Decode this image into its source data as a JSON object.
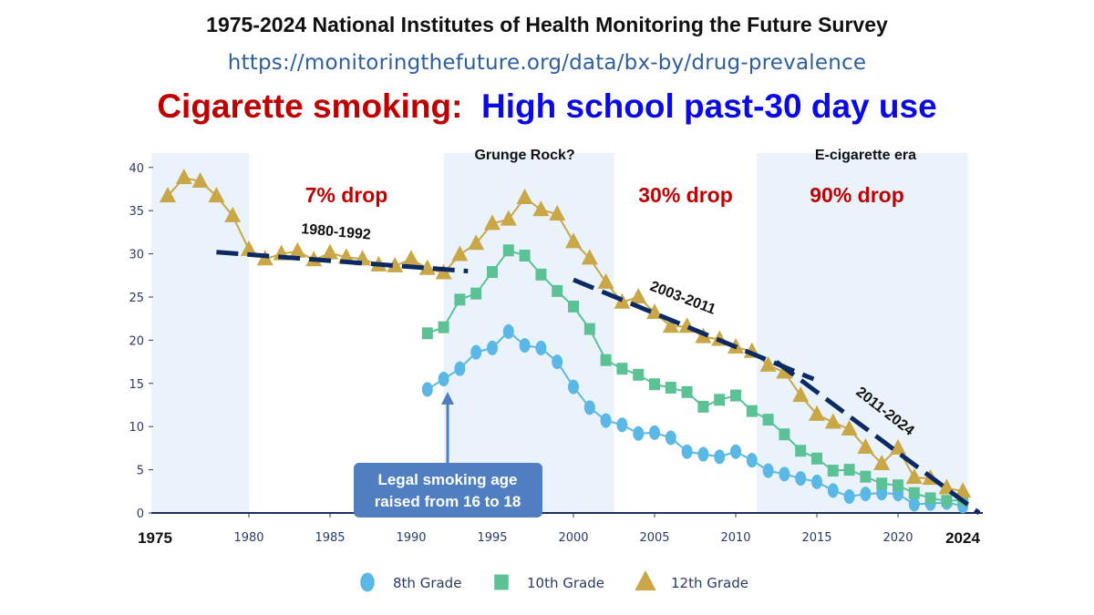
{
  "header": {
    "survey_title": "1975-2024 National Institutes of Health Monitoring the Future Survey",
    "source_url": "https://monitoringthefuture.org/data/bx-by/drug-prevalence",
    "title_part1": "Cigarette smoking:",
    "title_part2": "High school past-30 day use"
  },
  "colors": {
    "grade8": "#5bb8e4",
    "grade10": "#5cc296",
    "grade12": "#c9a646",
    "trend": "#0b2a63",
    "shade": "#eaf3fb",
    "drop": "#c00000",
    "callout": "#4f7fc0"
  },
  "chart_data": {
    "type": "line",
    "title": "Cigarette smoking: High school past-30 day use",
    "xlabel": "",
    "ylabel": "",
    "xlim": [
      1974,
      2025
    ],
    "ylim": [
      0,
      40
    ],
    "x_ticks": [
      1980,
      1985,
      1990,
      1995,
      2000,
      2005,
      2010,
      2015,
      2020
    ],
    "x_ticks_bold": [
      "1975",
      "2024"
    ],
    "y_ticks": [
      0,
      5,
      10,
      15,
      20,
      25,
      30,
      35,
      40
    ],
    "grid": false,
    "legend": "bottom",
    "series": [
      {
        "name": "8th Grade",
        "marker": "circle",
        "x": [
          1991,
          1992,
          1993,
          1994,
          1995,
          1996,
          1997,
          1998,
          1999,
          2000,
          2001,
          2002,
          2003,
          2004,
          2005,
          2006,
          2007,
          2008,
          2009,
          2010,
          2011,
          2012,
          2013,
          2014,
          2015,
          2016,
          2017,
          2018,
          2019,
          2020,
          2021,
          2022,
          2023,
          2024
        ],
        "values": [
          14.3,
          15.5,
          16.7,
          18.6,
          19.1,
          21.0,
          19.4,
          19.1,
          17.5,
          14.6,
          12.2,
          10.7,
          10.2,
          9.2,
          9.3,
          8.7,
          7.1,
          6.8,
          6.5,
          7.1,
          6.1,
          4.9,
          4.5,
          4.0,
          3.6,
          2.6,
          1.9,
          2.2,
          2.3,
          2.2,
          1.0,
          1.1,
          1.2,
          0.8
        ]
      },
      {
        "name": "10th Grade",
        "marker": "square",
        "x": [
          1991,
          1992,
          1993,
          1994,
          1995,
          1996,
          1997,
          1998,
          1999,
          2000,
          2001,
          2002,
          2003,
          2004,
          2005,
          2006,
          2007,
          2008,
          2009,
          2010,
          2011,
          2012,
          2013,
          2014,
          2015,
          2016,
          2017,
          2018,
          2019,
          2020,
          2021,
          2022,
          2023,
          2024
        ],
        "values": [
          20.8,
          21.5,
          24.7,
          25.4,
          27.9,
          30.4,
          29.8,
          27.6,
          25.7,
          23.9,
          21.3,
          17.7,
          16.7,
          16.0,
          14.9,
          14.5,
          14.0,
          12.3,
          13.1,
          13.6,
          11.8,
          10.8,
          9.1,
          7.2,
          6.3,
          4.9,
          5.0,
          4.2,
          3.4,
          3.2,
          2.3,
          1.7,
          1.4,
          1.5
        ]
      },
      {
        "name": "12th Grade",
        "marker": "triangle",
        "x": [
          1975,
          1976,
          1977,
          1978,
          1979,
          1980,
          1981,
          1982,
          1983,
          1984,
          1985,
          1986,
          1987,
          1988,
          1989,
          1990,
          1991,
          1992,
          1993,
          1994,
          1995,
          1996,
          1997,
          1998,
          1999,
          2000,
          2001,
          2002,
          2003,
          2004,
          2005,
          2006,
          2007,
          2008,
          2009,
          2010,
          2011,
          2012,
          2013,
          2014,
          2015,
          2016,
          2017,
          2018,
          2019,
          2020,
          2021,
          2022,
          2023,
          2024
        ],
        "values": [
          36.7,
          38.8,
          38.4,
          36.7,
          34.4,
          30.5,
          29.4,
          30.0,
          30.3,
          29.3,
          30.1,
          29.6,
          29.4,
          28.7,
          28.6,
          29.4,
          28.3,
          27.8,
          29.9,
          31.2,
          33.5,
          34.0,
          36.5,
          35.1,
          34.6,
          31.4,
          29.5,
          26.7,
          24.4,
          25.0,
          23.2,
          21.6,
          21.6,
          20.4,
          20.1,
          19.2,
          18.7,
          17.1,
          16.3,
          13.6,
          11.4,
          10.5,
          9.7,
          7.6,
          5.7,
          7.5,
          4.1,
          4.0,
          2.9,
          2.5
        ]
      }
    ],
    "shaded_periods": [
      [
        1974,
        1980
      ],
      [
        1992,
        2002.5
      ],
      [
        2011.3,
        2024.3
      ]
    ],
    "trend_lines": [
      {
        "label": "1980-1992",
        "from": [
          1978,
          30.2
        ],
        "to": [
          1993.5,
          28.0
        ]
      },
      {
        "label": "2003-2011",
        "from": [
          2000,
          27.0
        ],
        "to": [
          2014.8,
          15.5
        ]
      },
      {
        "label": "2011-2024",
        "from": [
          2012.5,
          17.5
        ],
        "to": [
          2025,
          0
        ]
      }
    ],
    "annotations": {
      "period_grunge": "Grunge Rock?",
      "period_ecig": "E-cigarette era",
      "drop_1": "7% drop",
      "drop_2": "30% drop",
      "drop_3": "90% drop",
      "callout_line1": "Legal smoking age",
      "callout_line2": "raised from 16 to 18"
    }
  }
}
